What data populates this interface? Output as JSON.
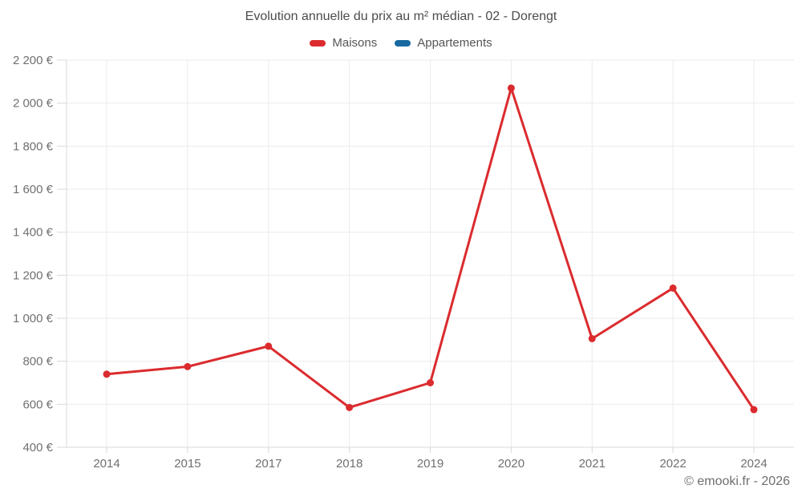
{
  "footer": "© emooki.fr - 2026",
  "chart_data": {
    "type": "line",
    "title": "Evolution annuelle du prix au m² médian - 02 - Dorengt",
    "categories": [
      "2014",
      "2015",
      "2017",
      "2018",
      "2019",
      "2020",
      "2021",
      "2022",
      "2024"
    ],
    "series": [
      {
        "name": "Maisons",
        "color": "#db2b2e",
        "values": [
          740,
          775,
          870,
          585,
          700,
          2070,
          905,
          1140,
          575
        ]
      },
      {
        "name": "Appartements",
        "color": "#17699f",
        "values": []
      }
    ],
    "ylim": [
      400,
      2200
    ],
    "y_tick_step": 200,
    "y_tick_labels": [
      "400 €",
      "600 €",
      "800 €",
      "1 000 €",
      "1 200 €",
      "1 400 €",
      "1 600 €",
      "1 800 €",
      "2 000 €",
      "2 200 €"
    ],
    "grid": true,
    "legend_position": "top",
    "colors": {
      "grid": "#ebebeb",
      "axis": "#d9d9d9",
      "tick_label": "#707070",
      "title": "#4c4c4c"
    }
  }
}
